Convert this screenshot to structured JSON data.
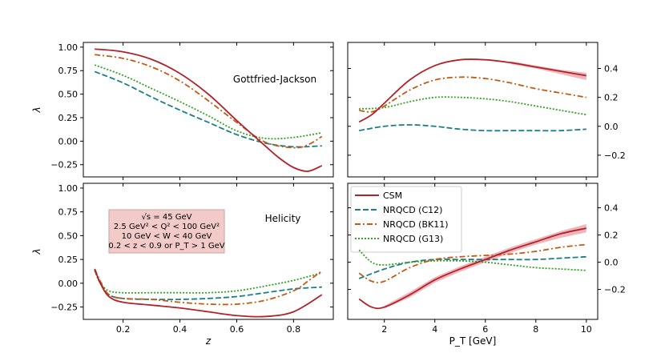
{
  "chart_data": {
    "type": "line",
    "x_left": "z",
    "x_right": "P_T [GeV]",
    "y_label": "λ",
    "left_ticks_y": [
      "1.00",
      "0.75",
      "0.50",
      "0.25",
      "0.00",
      "−0.25"
    ],
    "left_ticks_x": [
      "0.2",
      "0.4",
      "0.6",
      "0.8"
    ],
    "right_ticks_x": [
      "2",
      "4",
      "6",
      "8",
      "10"
    ],
    "right_ticks_y_top": [
      "0.4",
      "0.2",
      "0.0",
      "−0.2"
    ],
    "right_ticks_y_bottom": [
      "0.4",
      "0.2",
      "0.0",
      "−0.2"
    ],
    "panels": {
      "tl": {
        "title": "Gottfried-Jackson",
        "xlim": [
          0.06,
          0.94
        ],
        "ylim": [
          -0.38,
          1.05
        ]
      },
      "tr": {
        "xlim": [
          0.55,
          10.45
        ],
        "ylim": [
          -0.35,
          0.58
        ]
      },
      "bl": {
        "title": "Helicity",
        "xlim": [
          0.06,
          0.94
        ],
        "ylim": [
          -0.38,
          1.05
        ]
      },
      "br": {
        "xlim": [
          0.55,
          10.45
        ],
        "ylim": [
          -0.42,
          0.58
        ]
      }
    },
    "legend": [
      {
        "key": "csm",
        "label": "CSM"
      },
      {
        "key": "c12",
        "label": "NRQCD (C12)"
      },
      {
        "key": "bk11",
        "label": "NRQCD (BK11)"
      },
      {
        "key": "g13",
        "label": "NRQCD (G13)"
      }
    ],
    "colors": {
      "csm": "#b2222a",
      "c12": "#1a7f86",
      "bk11": "#c45a13",
      "g13": "#35a024",
      "band": "#e48f96",
      "annot_bg": "#f2cac8"
    },
    "annotation": {
      "line1": "√s = 45 GeV",
      "line2": "2.5 GeV² < Q² < 100 GeV²",
      "line3": "10 GeV < W < 40 GeV",
      "line4": "0.2 < z < 0.9 or P_T > 1 GeV"
    },
    "series": {
      "tl": {
        "csm": {
          "x": [
            0.1,
            0.2,
            0.3,
            0.4,
            0.5,
            0.6,
            0.7,
            0.75,
            0.8,
            0.85,
            0.9
          ],
          "y": [
            0.98,
            0.95,
            0.87,
            0.72,
            0.5,
            0.22,
            -0.05,
            -0.18,
            -0.28,
            -0.32,
            -0.26
          ]
        },
        "c12": {
          "x": [
            0.1,
            0.2,
            0.3,
            0.4,
            0.5,
            0.6,
            0.7,
            0.8,
            0.9
          ],
          "y": [
            0.74,
            0.62,
            0.47,
            0.33,
            0.2,
            0.07,
            -0.02,
            -0.06,
            -0.05
          ]
        },
        "bk11": {
          "x": [
            0.1,
            0.2,
            0.3,
            0.4,
            0.5,
            0.6,
            0.7,
            0.8,
            0.85,
            0.9
          ],
          "y": [
            0.92,
            0.88,
            0.79,
            0.64,
            0.43,
            0.2,
            -0.01,
            -0.07,
            -0.04,
            0.05
          ]
        },
        "g13": {
          "x": [
            0.1,
            0.2,
            0.3,
            0.4,
            0.5,
            0.6,
            0.7,
            0.8,
            0.9
          ],
          "y": [
            0.81,
            0.7,
            0.56,
            0.42,
            0.27,
            0.11,
            0.03,
            0.04,
            0.09
          ]
        }
      },
      "tr": {
        "csm": {
          "x": [
            1,
            1.5,
            2,
            3,
            4,
            5,
            6,
            7,
            8,
            9,
            10
          ],
          "y": [
            0.03,
            0.08,
            0.16,
            0.32,
            0.42,
            0.46,
            0.46,
            0.44,
            0.41,
            0.38,
            0.35
          ]
        },
        "c12": {
          "x": [
            1,
            2,
            3,
            4,
            5,
            6,
            7,
            8,
            9,
            10
          ],
          "y": [
            -0.03,
            0.0,
            0.01,
            0.0,
            -0.02,
            -0.03,
            -0.03,
            -0.03,
            -0.03,
            -0.02
          ]
        },
        "bk11": {
          "x": [
            1,
            1.5,
            2,
            3,
            4,
            5,
            6,
            7,
            8,
            9,
            10
          ],
          "y": [
            0.11,
            0.1,
            0.14,
            0.25,
            0.32,
            0.34,
            0.33,
            0.3,
            0.26,
            0.23,
            0.2
          ]
        },
        "g13": {
          "x": [
            1,
            2,
            3,
            4,
            5,
            6,
            7,
            8,
            9,
            10
          ],
          "y": [
            0.12,
            0.13,
            0.17,
            0.2,
            0.2,
            0.19,
            0.17,
            0.14,
            0.11,
            0.08
          ]
        }
      },
      "bl": {
        "csm": {
          "x": [
            0.1,
            0.12,
            0.15,
            0.2,
            0.3,
            0.4,
            0.5,
            0.6,
            0.7,
            0.8,
            0.9
          ],
          "y": [
            0.15,
            0.0,
            -0.14,
            -0.2,
            -0.23,
            -0.26,
            -0.3,
            -0.34,
            -0.35,
            -0.3,
            -0.12
          ]
        },
        "c12": {
          "x": [
            0.1,
            0.12,
            0.15,
            0.2,
            0.3,
            0.4,
            0.5,
            0.6,
            0.7,
            0.8,
            0.9
          ],
          "y": [
            0.14,
            0.0,
            -0.12,
            -0.16,
            -0.17,
            -0.17,
            -0.16,
            -0.14,
            -0.1,
            -0.06,
            -0.04
          ]
        },
        "bk11": {
          "x": [
            0.1,
            0.12,
            0.15,
            0.2,
            0.3,
            0.4,
            0.5,
            0.6,
            0.7,
            0.8,
            0.85,
            0.9
          ],
          "y": [
            0.15,
            0.02,
            -0.12,
            -0.16,
            -0.17,
            -0.2,
            -0.22,
            -0.22,
            -0.18,
            -0.08,
            0.02,
            0.13
          ]
        },
        "g13": {
          "x": [
            0.1,
            0.12,
            0.15,
            0.2,
            0.3,
            0.4,
            0.5,
            0.6,
            0.7,
            0.8,
            0.9
          ],
          "y": [
            0.13,
            0.0,
            -0.08,
            -0.1,
            -0.1,
            -0.1,
            -0.1,
            -0.08,
            -0.03,
            0.03,
            0.11
          ]
        }
      },
      "br": {
        "csm": {
          "x": [
            1,
            1.5,
            2,
            3,
            4,
            5,
            6,
            7,
            8,
            9,
            10
          ],
          "y": [
            -0.27,
            -0.33,
            -0.33,
            -0.24,
            -0.13,
            -0.05,
            0.02,
            0.09,
            0.15,
            0.21,
            0.25
          ]
        },
        "c12": {
          "x": [
            1,
            2,
            3,
            4,
            5,
            6,
            7,
            8,
            9,
            10
          ],
          "y": [
            -0.12,
            -0.05,
            0.0,
            0.02,
            0.02,
            0.02,
            0.02,
            0.02,
            0.03,
            0.04
          ]
        },
        "bk11": {
          "x": [
            1,
            1.5,
            2,
            3,
            4,
            5,
            6,
            7,
            8,
            9,
            10
          ],
          "y": [
            -0.08,
            -0.14,
            -0.14,
            -0.04,
            0.02,
            0.04,
            0.05,
            0.06,
            0.08,
            0.11,
            0.13
          ]
        },
        "g13": {
          "x": [
            1,
            1.5,
            2,
            3,
            4,
            5,
            6,
            7,
            8,
            9,
            10
          ],
          "y": [
            0.09,
            0.0,
            -0.02,
            0.0,
            0.01,
            0.01,
            0.0,
            -0.02,
            -0.04,
            -0.05,
            -0.06
          ]
        }
      }
    },
    "bands": {
      "tr": {
        "x": [
          7,
          8,
          9,
          10
        ],
        "lo": [
          0.43,
          0.4,
          0.36,
          0.32
        ],
        "hi": [
          0.45,
          0.42,
          0.39,
          0.37
        ]
      },
      "br": {
        "x": [
          2,
          3,
          4,
          5,
          6,
          7,
          8,
          9,
          10
        ],
        "lo": [
          -0.34,
          -0.26,
          -0.15,
          -0.07,
          0.0,
          0.07,
          0.13,
          0.18,
          0.22
        ],
        "hi": [
          -0.32,
          -0.22,
          -0.11,
          -0.03,
          0.04,
          0.11,
          0.17,
          0.23,
          0.28
        ]
      }
    }
  }
}
